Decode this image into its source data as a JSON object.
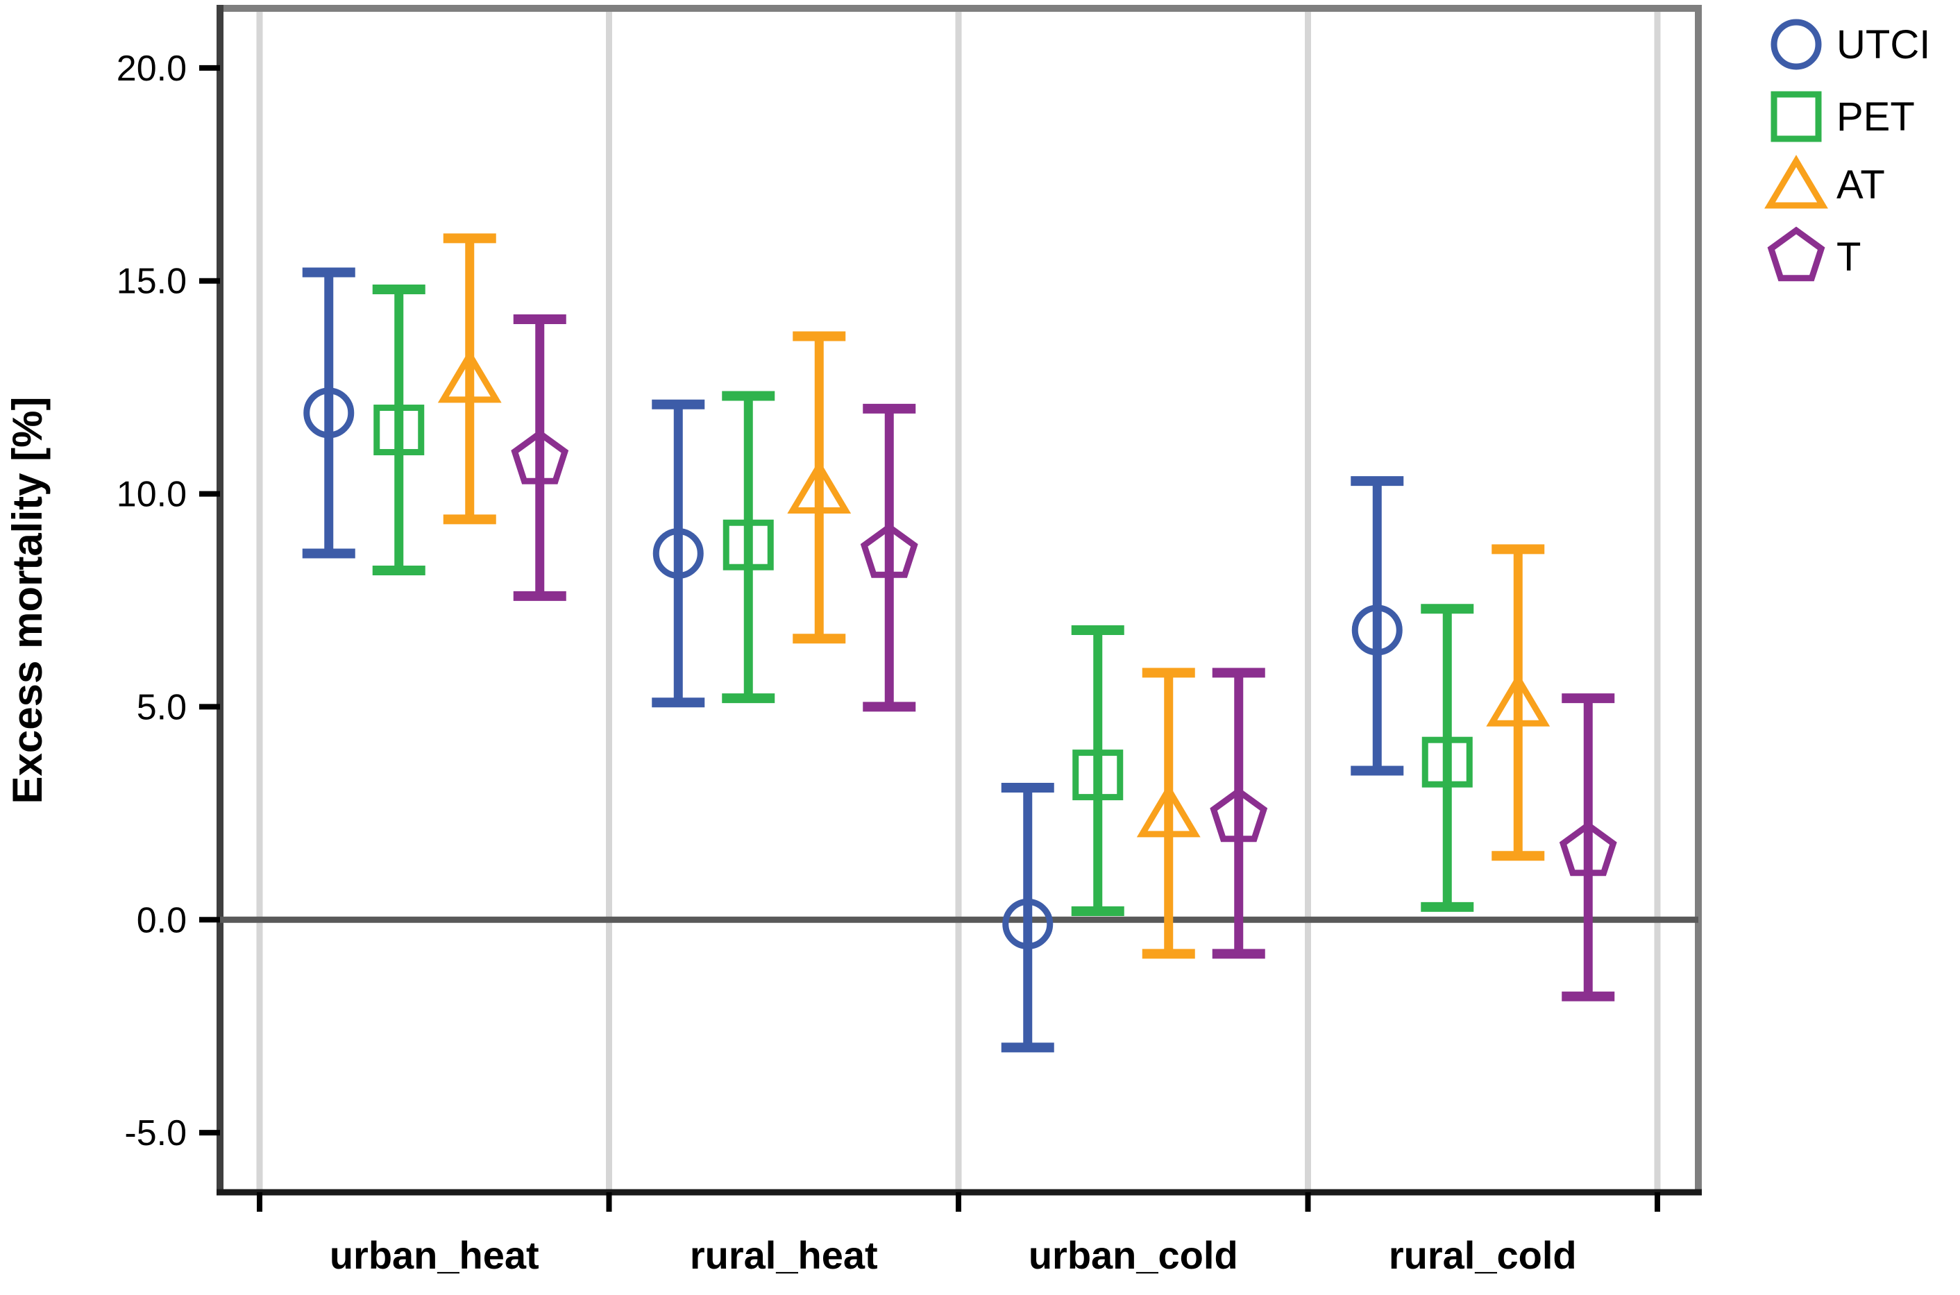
{
  "chart_data": {
    "type": "scatter",
    "subtype": "point-estimates-with-error-bars",
    "title": "",
    "ylabel": "Excess mortality [%]",
    "xlabel": "",
    "categories": [
      "urban_heat",
      "rural_heat",
      "urban_cold",
      "rural_cold"
    ],
    "yticks": [
      "20.0",
      "15.0",
      "10.0",
      "5.0",
      "0.0",
      "-5.0"
    ],
    "ylim": [
      -6.4,
      21.4
    ],
    "reference_line": 0.0,
    "grid": "vertical-category-separators",
    "legend_position": "top-right-outside",
    "series": [
      {
        "name": "UTCI",
        "marker": "circle",
        "color": "#3D5CA8",
        "values": [
          11.9,
          8.6,
          -0.1,
          6.8
        ],
        "ci_low": [
          8.6,
          5.1,
          -3.0,
          3.5
        ],
        "ci_high": [
          15.2,
          12.1,
          3.1,
          10.3
        ]
      },
      {
        "name": "PET",
        "marker": "square",
        "color": "#2FB34D",
        "values": [
          11.5,
          8.8,
          3.4,
          3.7
        ],
        "ci_low": [
          8.2,
          5.2,
          0.2,
          0.3
        ],
        "ci_high": [
          14.8,
          12.3,
          6.8,
          7.3
        ]
      },
      {
        "name": "AT",
        "marker": "triangle",
        "color": "#F9A11C",
        "values": [
          12.7,
          10.1,
          2.5,
          5.1
        ],
        "ci_low": [
          9.4,
          6.6,
          -0.8,
          1.5
        ],
        "ci_high": [
          16.0,
          13.7,
          5.8,
          8.7
        ]
      },
      {
        "name": "T",
        "marker": "pentagon",
        "color": "#8B2F8F",
        "values": [
          10.8,
          8.6,
          2.4,
          1.6
        ],
        "ci_low": [
          7.6,
          5.0,
          -0.8,
          -1.8
        ],
        "ci_high": [
          14.1,
          12.0,
          5.8,
          5.2
        ]
      }
    ],
    "colors": {
      "frame": "#7F7F7F",
      "left_axis": "#3F3F3F",
      "bottom_axis": "#1A1A1A",
      "zero_line": "#595959",
      "separator": "#D6D6D6",
      "text": "#000000"
    }
  }
}
